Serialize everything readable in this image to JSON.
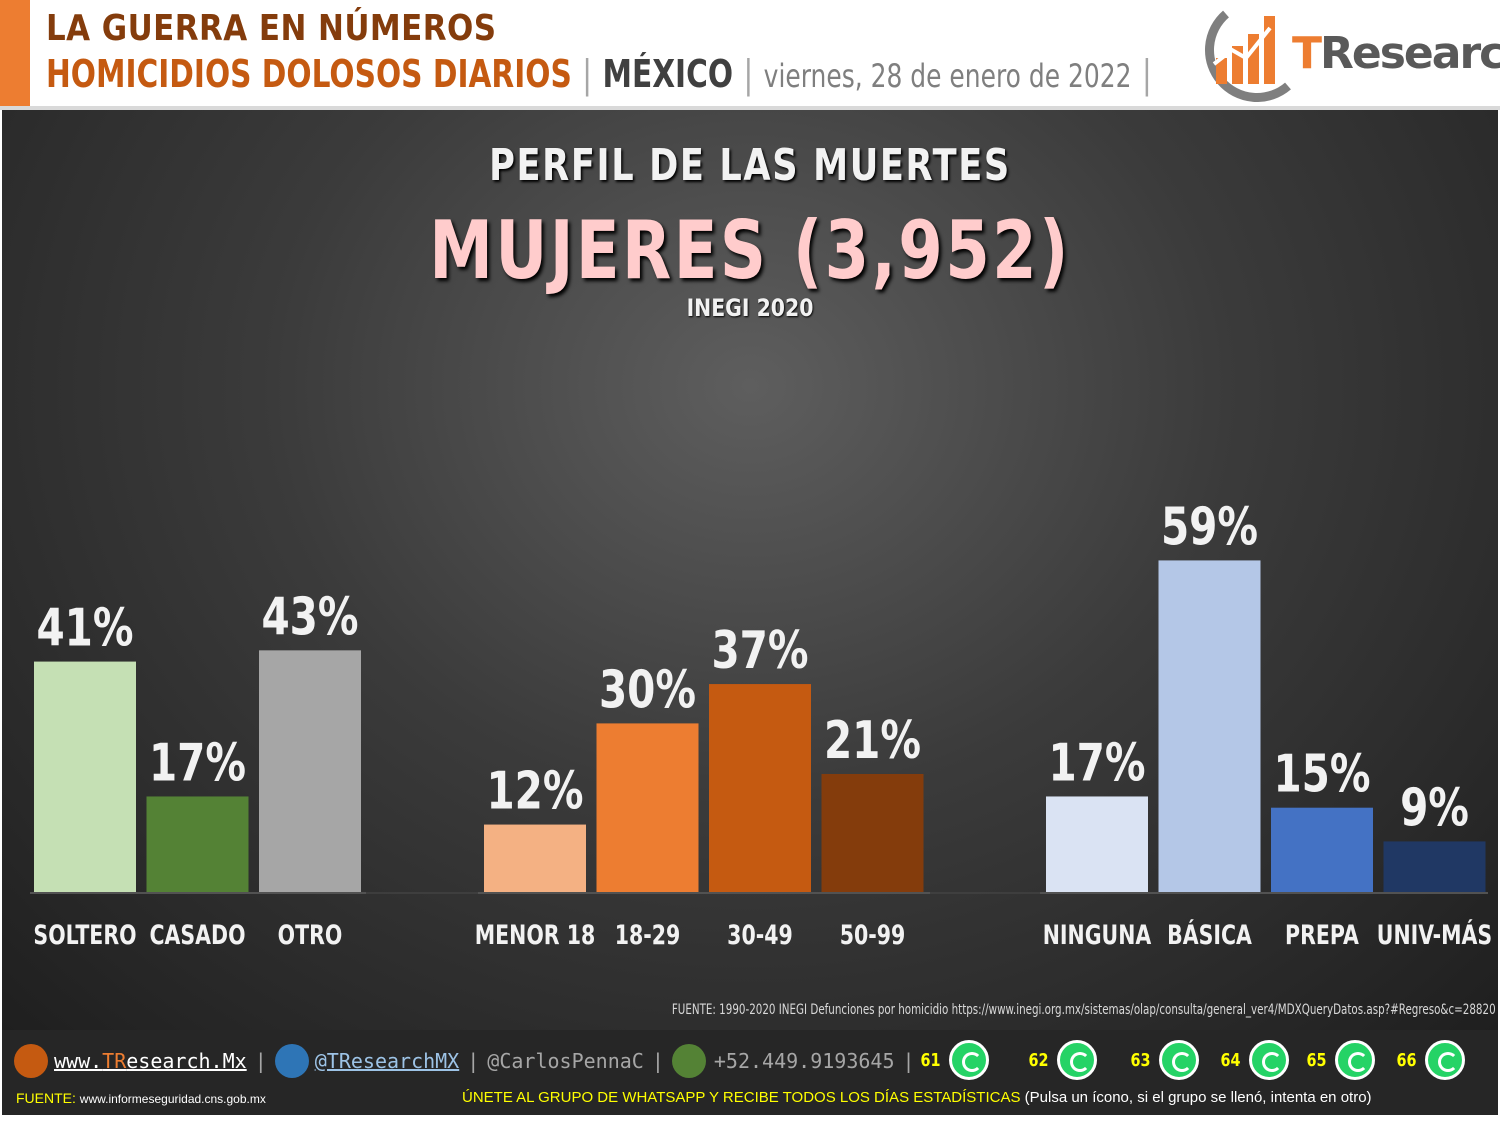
{
  "header": {
    "line1": "LA GUERRA EN NÚMEROS",
    "line2_main": "HOMICIDIOS DOLOSOS DIARIOS",
    "separator": "|",
    "country": "MÉXICO",
    "date": "viernes, 28 de enero de 2022",
    "logo_t": "T",
    "logo_rest": "Research"
  },
  "colors": {
    "accent_orange": "#ed7d31",
    "brown": "#843c0c",
    "panel_dark": "#333333",
    "title_pink": "#ffcccc",
    "footer_yellow": "#ffff00"
  },
  "chart_data": {
    "type": "bar",
    "title": "PERFIL DE LAS MUERTES",
    "subtitle": "MUJERES (3,952)",
    "note": "INEGI 2020",
    "value_suffix": "%",
    "groups": [
      {
        "categories": [
          "SOLTERO",
          "CASADO",
          "OTRO"
        ],
        "values": [
          41,
          17,
          43
        ],
        "colors": [
          "#c5e0b4",
          "#548235",
          "#a6a6a6"
        ]
      },
      {
        "categories": [
          "MENOR 18",
          "18-29",
          "30-49",
          "50-99"
        ],
        "values": [
          12,
          30,
          37,
          21
        ],
        "colors": [
          "#f4b183",
          "#ed7d31",
          "#c55a11",
          "#843c0c"
        ]
      },
      {
        "categories": [
          "NINGUNA",
          "BÁSICA",
          "PREPA",
          "UNIV-MÁS"
        ],
        "values": [
          17,
          59,
          15,
          9
        ],
        "colors": [
          "#dae3f3",
          "#b4c7e7",
          "#4472c4",
          "#203864"
        ]
      }
    ]
  },
  "source_note": "FUENTE: 1990-2020 INEGI Defunciones por homicidio https://www.inegi.org.mx/sistemas/olap/consulta/general_ver4/MDXQueryDatos.asp?#Regreso&c=28820",
  "footer": {
    "web_prefix": "www.",
    "web_t": "TR",
    "web_rest": "esearch.Mx",
    "twitter": "@TResearchMX",
    "personal": "@CarlosPennaC",
    "phone": "+52.449.9193645",
    "whatsapp_groups": [
      "61",
      "62",
      "63",
      "64",
      "65",
      "66"
    ],
    "source_label": "FUENTE:",
    "source_url": "www.informeseguridad.cns.gob.mx",
    "join_text": "ÚNETE AL GRUPO DE WHATSAPP Y RECIBE TODOS LOS DÍAS ESTADÍSTICAS",
    "join_hint": "(Pulsa un ícono, si el grupo se llenó, intenta en otro)"
  }
}
